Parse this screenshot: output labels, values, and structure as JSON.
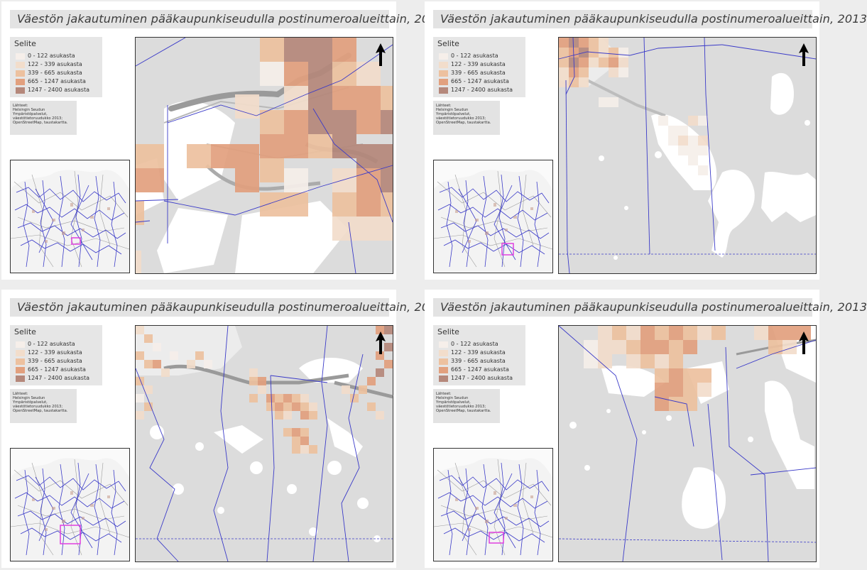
{
  "map": {
    "title": "Väestön jakautuminen pääkaupunkiseudulla postinumeroalueittain, 2013",
    "legend": {
      "title": "Selite",
      "items": [
        {
          "label": "0 - 122 asukasta",
          "color": "#f6efea"
        },
        {
          "label": "122 - 339 asukasta",
          "color": "#f2ddcb"
        },
        {
          "label": "339 - 665 asukasta",
          "color": "#edc19f"
        },
        {
          "label": "665 - 1247 asukasta",
          "color": "#e2a07e"
        },
        {
          "label": "1247 - 2400 asukasta",
          "color": "#b5887b"
        }
      ]
    },
    "sources": {
      "heading": "Lähteet:",
      "lines": [
        "Helsingin Seudun",
        "Ympäristöpalvelut,",
        "väestötietoruudukko 2013;",
        "OpenStreetMap, taustakartta."
      ]
    },
    "colors": {
      "water": "#ffffff",
      "land": "#dcdcdc",
      "boundary": "#3a3ac8",
      "inset_highlight": "#e040e0",
      "north_arrow": "#000000"
    },
    "icons": {
      "north_arrow": "north-arrow-icon"
    },
    "panels": [
      {
        "name": "city-center"
      },
      {
        "name": "eastern-islands"
      },
      {
        "name": "western-islands"
      },
      {
        "name": "southern-islands"
      }
    ]
  }
}
